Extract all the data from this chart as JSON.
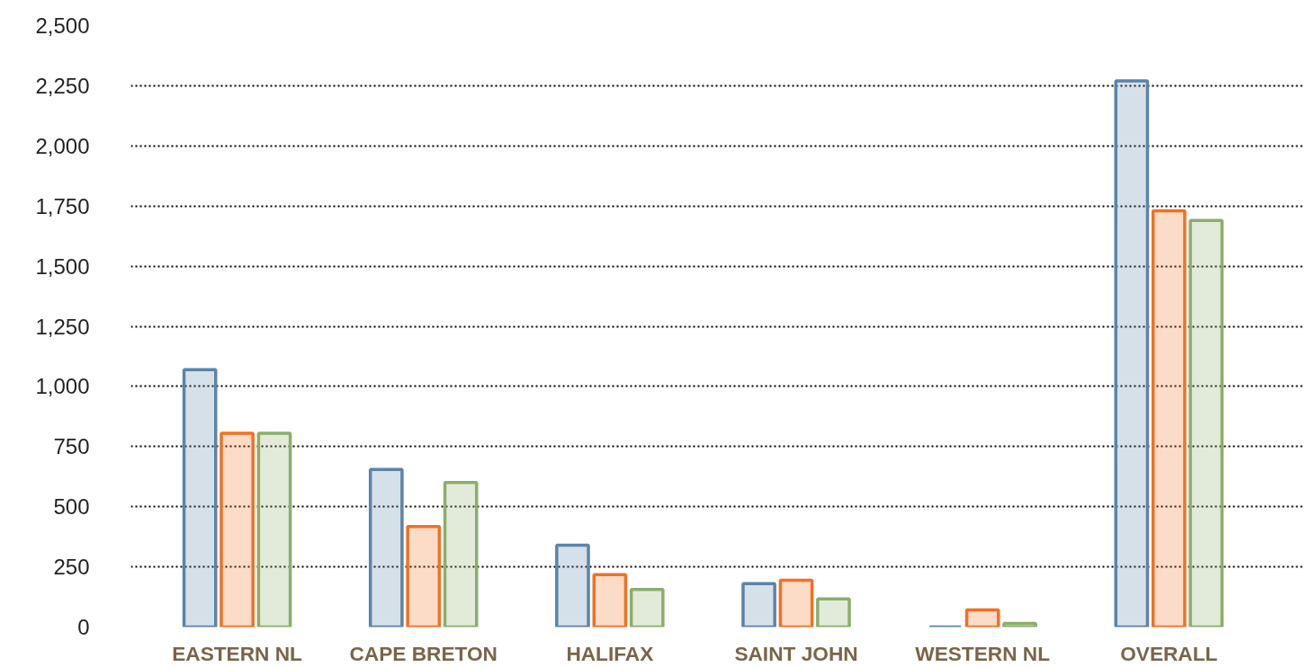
{
  "chart_data": {
    "type": "bar",
    "categories": [
      "EASTERN NL",
      "CAPE BRETON",
      "HALIFAX",
      "SAINT JOHN",
      "WESTERN NL",
      "OVERALL"
    ],
    "series": [
      {
        "color": "#5b84a8",
        "values": [
          1070,
          655,
          340,
          180,
          0,
          2270
        ]
      },
      {
        "color": "#f37021",
        "values": [
          805,
          418,
          218,
          194,
          71,
          1730
        ]
      },
      {
        "color": "#8aae6c",
        "values": [
          805,
          601,
          156,
          117,
          15,
          1690
        ]
      }
    ],
    "ylim": [
      0,
      2500
    ],
    "yticks": [
      {
        "value": 0,
        "label": "0"
      },
      {
        "value": 250,
        "label": "250"
      },
      {
        "value": 500,
        "label": "500"
      },
      {
        "value": 750,
        "label": "750"
      },
      {
        "value": 1000,
        "label": "1,000"
      },
      {
        "value": 1250,
        "label": "1,250"
      },
      {
        "value": 1500,
        "label": "1,500"
      },
      {
        "value": 1750,
        "label": "1,750"
      },
      {
        "value": 2000,
        "label": "2,000"
      },
      {
        "value": 2250,
        "label": "2,250"
      },
      {
        "value": 2500,
        "label": "2,500"
      }
    ],
    "grid": "y"
  }
}
